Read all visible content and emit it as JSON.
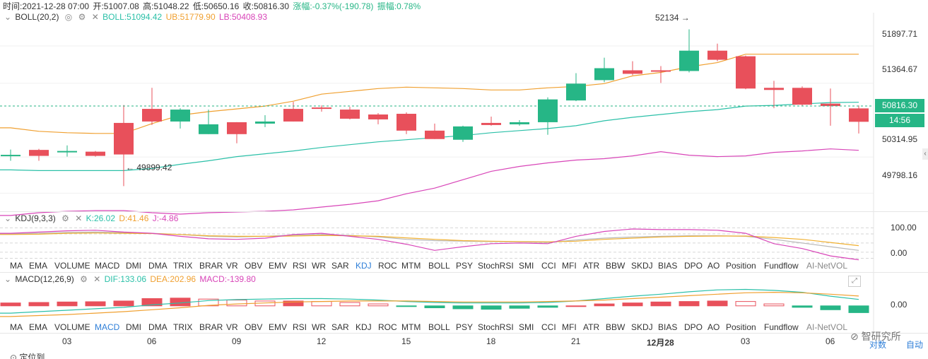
{
  "header": {
    "time_label": "时间:2021-12-28 07:00",
    "open_label": "开:51007.08",
    "high_label": "高:51048.22",
    "low_label": "低:50650.16",
    "close_label": "收:50816.30",
    "change_label": "涨幅:-0.37%(-190.78)",
    "amplitude_label": "振幅:0.78%"
  },
  "boll": {
    "title": "BOLL(20,2)",
    "mid": "BOLL:51094.42",
    "ub": "UB:51779.90",
    "lb": "LB:50408.93"
  },
  "kdj": {
    "title": "KDJ(9,3,3)",
    "k": "K:26.02",
    "d": "D:41.46",
    "j": "J:-4.86"
  },
  "macd": {
    "title": "MACD(12,26,9)",
    "dif": "DIF:133.06",
    "dea": "DEA:202.96",
    "macd": "MACD:-139.80"
  },
  "price_axis": [
    "51897.71",
    "51364.67",
    "50816.30",
    "50314.95",
    "49798.16"
  ],
  "current_price": "50816.30",
  "countdown": "14:56",
  "annotations": {
    "high": "52134",
    "low": "49899.42"
  },
  "kdj_axis": [
    "100.00",
    "0.00"
  ],
  "macd_axis": [
    "0.00"
  ],
  "indicator_tabs": [
    "MA",
    "EMA",
    "VOLUME",
    "MACD",
    "DMI",
    "DMA",
    "TRIX",
    "BRAR",
    "VR",
    "OBV",
    "EMV",
    "RSI",
    "WR",
    "SAR",
    "KDJ",
    "ROC",
    "MTM",
    "BOLL",
    "PSY",
    "StochRSI",
    "SMI",
    "CCI",
    "MFI",
    "ATR",
    "BBW",
    "SKDJ",
    "BIAS",
    "DPO",
    "AO",
    "Position",
    "Fundflow",
    "AI-NetVOL"
  ],
  "tabs_row1_active": "KDJ",
  "tabs_row2_active": "MACD",
  "date_axis": [
    "03",
    "06",
    "09",
    "12",
    "15",
    "18",
    "21",
    "12月28",
    "03",
    "06"
  ],
  "bottom_left": "定位到",
  "bottom_right": {
    "log": "对数",
    "auto": "自动",
    "watermark": "智研究所"
  },
  "colors": {
    "up": "#26b686",
    "down": "#e8505b",
    "ub": "#f0a030",
    "mid": "#2bc0a8",
    "lb": "#d845b8",
    "k": "#b8b8b8",
    "d": "#f0b030",
    "j": "#d845b8"
  },
  "chart_data": {
    "type": "candlestick",
    "ylim": [
      49550,
      52250
    ],
    "candles": [
      {
        "o": 50330,
        "c": 50345,
        "h": 50420,
        "l": 50260
      },
      {
        "o": 50415,
        "c": 50330,
        "h": 50430,
        "l": 50260
      },
      {
        "o": 50400,
        "c": 50400,
        "h": 50480,
        "l": 50320
      },
      {
        "o": 50390,
        "c": 50330,
        "h": 50400,
        "l": 50320
      },
      {
        "o": 50800,
        "c": 50350,
        "h": 51055,
        "l": 49899
      },
      {
        "o": 51000,
        "c": 50820,
        "h": 51300,
        "l": 50770
      },
      {
        "o": 50820,
        "c": 50990,
        "h": 51010,
        "l": 50720
      },
      {
        "o": 50640,
        "c": 50780,
        "h": 50990,
        "l": 50640
      },
      {
        "o": 50810,
        "c": 50640,
        "h": 50810,
        "l": 50510
      },
      {
        "o": 50790,
        "c": 50820,
        "h": 50910,
        "l": 50740
      },
      {
        "o": 51000,
        "c": 50820,
        "h": 51100,
        "l": 50820
      },
      {
        "o": 51020,
        "c": 51010,
        "h": 51050,
        "l": 50960
      },
      {
        "o": 50990,
        "c": 50860,
        "h": 51030,
        "l": 50850
      },
      {
        "o": 50920,
        "c": 50850,
        "h": 50940,
        "l": 50780
      },
      {
        "o": 50930,
        "c": 50690,
        "h": 50950,
        "l": 50640
      },
      {
        "o": 50690,
        "c": 50570,
        "h": 50790,
        "l": 50570
      },
      {
        "o": 50560,
        "c": 50750,
        "h": 50760,
        "l": 50530
      },
      {
        "o": 50800,
        "c": 50770,
        "h": 50890,
        "l": 50760
      },
      {
        "o": 50780,
        "c": 50810,
        "h": 50840,
        "l": 50760
      },
      {
        "o": 50810,
        "c": 51135,
        "h": 51165,
        "l": 50630
      },
      {
        "o": 51120,
        "c": 51360,
        "h": 51510,
        "l": 51110
      },
      {
        "o": 51410,
        "c": 51580,
        "h": 51730,
        "l": 51380
      },
      {
        "o": 51550,
        "c": 51500,
        "h": 51680,
        "l": 51480
      },
      {
        "o": 51550,
        "c": 51530,
        "h": 51610,
        "l": 51370
      },
      {
        "o": 51540,
        "c": 51830,
        "h": 52134,
        "l": 51520
      },
      {
        "o": 51830,
        "c": 51700,
        "h": 51930,
        "l": 51680
      },
      {
        "o": 51750,
        "c": 51290,
        "h": 51760,
        "l": 51280
      },
      {
        "o": 51300,
        "c": 51270,
        "h": 51400,
        "l": 51010
      },
      {
        "o": 51300,
        "c": 51060,
        "h": 51320,
        "l": 51040
      },
      {
        "o": 51075,
        "c": 51040,
        "h": 51290,
        "l": 50760
      },
      {
        "o": 51007,
        "c": 50816,
        "h": 51048,
        "l": 50650
      }
    ],
    "boll_ub": [
      50730,
      50680,
      50660,
      50650,
      50650,
      50790,
      50910,
      50960,
      51000,
      51040,
      51110,
      51210,
      51250,
      51290,
      51310,
      51300,
      51290,
      51270,
      51270,
      51300,
      51320,
      51360,
      51470,
      51520,
      51600,
      51660,
      51779.9,
      51779.9,
      51779.9,
      51779.9,
      51779.9
    ],
    "boll_mid": [
      50130,
      50120,
      50120,
      50120,
      50120,
      50150,
      50210,
      50260,
      50320,
      50360,
      50400,
      50450,
      50490,
      50530,
      50560,
      50590,
      50620,
      50660,
      50690,
      50720,
      50760,
      50830,
      50880,
      50920,
      50960,
      50990,
      51040,
      51050,
      51070,
      51090,
      51094.42
    ],
    "boll_lb": [
      49480,
      49520,
      49540,
      49550,
      49550,
      49520,
      49500,
      49520,
      49530,
      49540,
      49560,
      49600,
      49640,
      49690,
      49790,
      49870,
      49990,
      50110,
      50180,
      50230,
      50270,
      50290,
      50330,
      50390,
      50340,
      50320,
      50330,
      50380,
      50400,
      50430,
      50408.93
    ],
    "kdj_ylim": [
      -15,
      110
    ],
    "kdj_k": [
      80,
      82,
      85,
      86,
      84,
      82,
      78,
      72,
      70,
      72,
      76,
      78,
      75,
      70,
      62,
      58,
      56,
      55,
      54,
      52,
      60,
      66,
      70,
      72,
      74,
      74,
      72,
      62,
      50,
      38,
      26.02
    ],
    "kdj_d": [
      78,
      79,
      82,
      83,
      82,
      81,
      78,
      74,
      72,
      72,
      73,
      75,
      74,
      72,
      67,
      62,
      58,
      56,
      55,
      54,
      56,
      62,
      66,
      70,
      72,
      73,
      73,
      68,
      62,
      52,
      41.46
    ],
    "kdj_j": [
      82,
      86,
      90,
      92,
      86,
      82,
      72,
      64,
      62,
      66,
      78,
      82,
      72,
      62,
      46,
      26,
      38,
      48,
      50,
      48,
      72,
      88,
      96,
      94,
      94,
      92,
      82,
      48,
      32,
      8,
      -4.86
    ],
    "macd_ylim": [
      -280,
      420
    ],
    "macd_hist": [
      60,
      70,
      80,
      85,
      100,
      150,
      160,
      140,
      120,
      100,
      100,
      90,
      70,
      40,
      -10,
      -40,
      -60,
      -70,
      -50,
      -30,
      0,
      40,
      60,
      80,
      90,
      100,
      90,
      40,
      -30,
      -80,
      -139.8
    ],
    "macd_dif": [
      -150,
      -120,
      -90,
      -60,
      -30,
      20,
      60,
      110,
      130,
      140,
      150,
      150,
      140,
      120,
      90,
      70,
      60,
      60,
      60,
      70,
      100,
      150,
      200,
      240,
      290,
      330,
      340,
      320,
      280,
      200,
      133.06
    ],
    "macd_dea": [
      -220,
      -200,
      -180,
      -150,
      -120,
      -80,
      -40,
      10,
      40,
      60,
      80,
      90,
      100,
      100,
      100,
      90,
      80,
      80,
      80,
      90,
      100,
      120,
      150,
      180,
      210,
      240,
      270,
      280,
      270,
      240,
      202.96
    ]
  }
}
